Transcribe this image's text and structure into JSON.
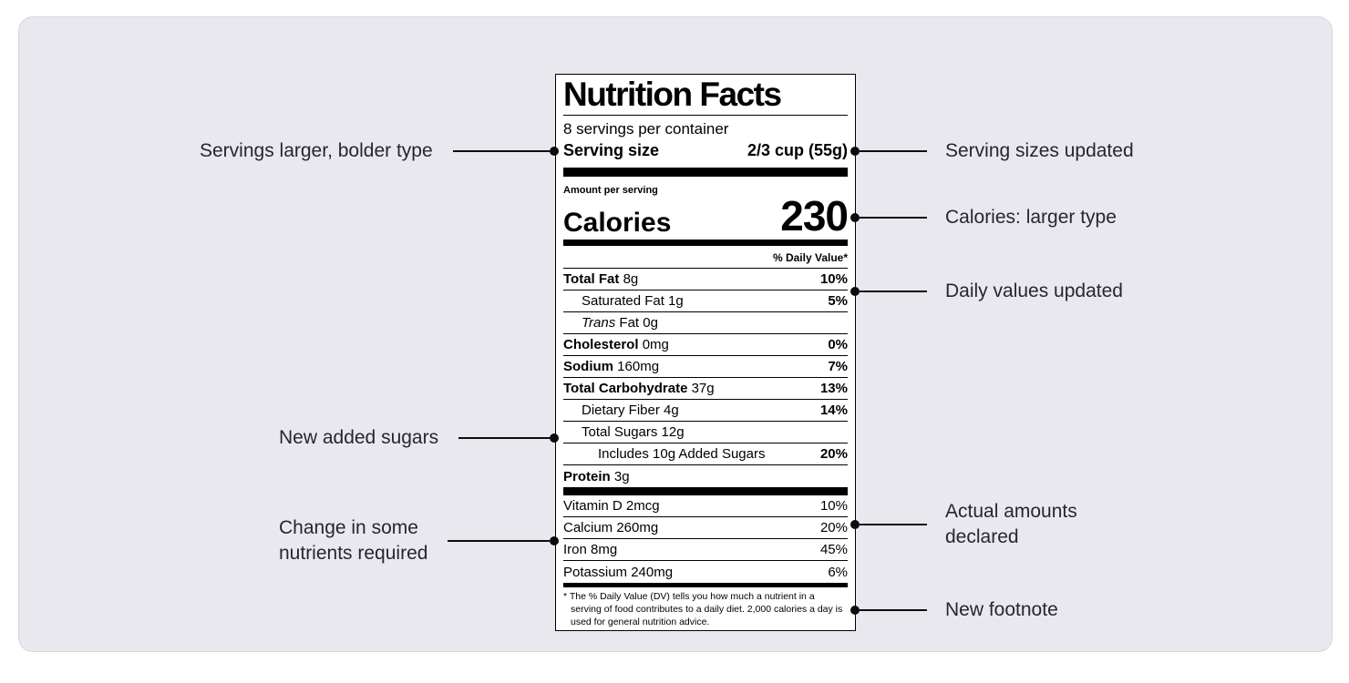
{
  "colors": {
    "card_background": "#e8e8ee",
    "callout_text": "#26262e",
    "line": "#0d0d0d",
    "label_ink": "#000000"
  },
  "label": {
    "title": "Nutrition Facts",
    "servings_per_container": "8 servings per container",
    "serving_size_label": "Serving size",
    "serving_size_value": "2/3 cup (55g)",
    "amount_per_serving": "Amount per serving",
    "calories_label": "Calories",
    "calories_value": "230",
    "daily_value_header": "% Daily Value*",
    "rows": [
      {
        "b": "Total Fat",
        "i": "",
        "r": "8g",
        "dv": "10%"
      },
      {
        "b": "",
        "i": "",
        "r": "Saturated Fat 1g",
        "dv": "5%"
      },
      {
        "b": "",
        "i": "Trans",
        "r": "Fat 0g",
        "dv": ""
      },
      {
        "b": "Cholesterol",
        "i": "",
        "r": "0mg",
        "dv": "0%"
      },
      {
        "b": "Sodium",
        "i": "",
        "r": "160mg",
        "dv": "7%"
      },
      {
        "b": "Total Carbohydrate",
        "i": "",
        "r": "37g",
        "dv": "13%"
      },
      {
        "b": "",
        "i": "",
        "r": "Dietary Fiber 4g",
        "dv": "14%"
      },
      {
        "b": "",
        "i": "",
        "r": "Total Sugars 12g",
        "dv": ""
      },
      {
        "b": "",
        "i": "",
        "r": "Includes 10g Added Sugars",
        "dv": "20%"
      },
      {
        "b": "Protein",
        "i": "",
        "r": "3g",
        "dv": ""
      }
    ],
    "vitamins": [
      {
        "r": "Vitamin D 2mcg",
        "dv": "10%"
      },
      {
        "r": "Calcium 260mg",
        "dv": "20%"
      },
      {
        "r": "Iron 8mg",
        "dv": "45%"
      },
      {
        "r": "Potassium 240mg",
        "dv": "6%"
      }
    ],
    "footnote": "* The % Daily Value (DV) tells you how much a nutrient in a serving of food contributes to a daily diet. 2,000 calories a day is used for general nutrition advice."
  },
  "callouts": {
    "left": [
      {
        "label": "Servings larger, bolder type"
      },
      {
        "label": "New added sugars"
      },
      {
        "lines": [
          "Change in some",
          "nutrients required"
        ]
      }
    ],
    "right": [
      {
        "label": "Serving sizes updated"
      },
      {
        "label": "Calories: larger type"
      },
      {
        "label": "Daily values updated"
      },
      {
        "lines": [
          "Actual amounts",
          "declared"
        ]
      },
      {
        "label": "New footnote"
      }
    ]
  }
}
